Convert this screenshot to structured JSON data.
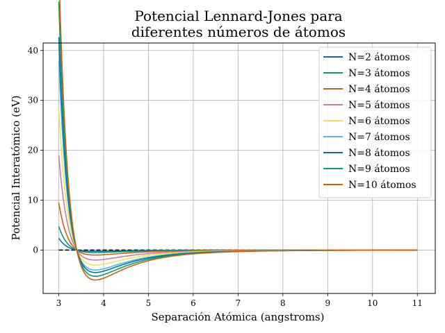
{
  "chart_data": {
    "type": "line",
    "title": [
      "Potencial Lennard-Jones para",
      "diferentes números de átomos"
    ],
    "xlabel": "Separación Atómica (angstroms)",
    "ylabel": "Potencial Interatómico (eV)",
    "xlim": [
      2.65,
      11.4
    ],
    "ylim": [
      -8.7,
      41.5
    ],
    "xticks": [
      3,
      4,
      5,
      6,
      7,
      8,
      9,
      10,
      11
    ],
    "yticks": [
      0,
      10,
      20,
      30,
      40
    ],
    "grid": true,
    "legend_position": "top-right",
    "x_domain": [
      3,
      11
    ],
    "sigma": 3.4,
    "reference_line": {
      "y": 0,
      "color": "#000000",
      "style": "dashed"
    },
    "series": [
      {
        "name": "N=2 átomos",
        "epsilon": 0.25,
        "color": "#0072B2"
      },
      {
        "name": "N=3 átomos",
        "epsilon": 0.5,
        "color": "#009E73"
      },
      {
        "name": "N=4 átomos",
        "epsilon": 1.0,
        "color": "#D55E00"
      },
      {
        "name": "N=5 átomos",
        "epsilon": 2.0,
        "color": "#CC79A7"
      },
      {
        "name": "N=6 átomos",
        "epsilon": 3.0,
        "color": "#F0E442"
      },
      {
        "name": "N=7 átomos",
        "epsilon": 4.0,
        "color": "#56B4E9"
      },
      {
        "name": "N=8 átomos",
        "epsilon": 4.5,
        "color": "#0072B2"
      },
      {
        "name": "N=9 átomos",
        "epsilon": 5.25,
        "color": "#009E73"
      },
      {
        "name": "N=10 átomos",
        "epsilon": 6.0,
        "color": "#D55E00"
      }
    ]
  }
}
